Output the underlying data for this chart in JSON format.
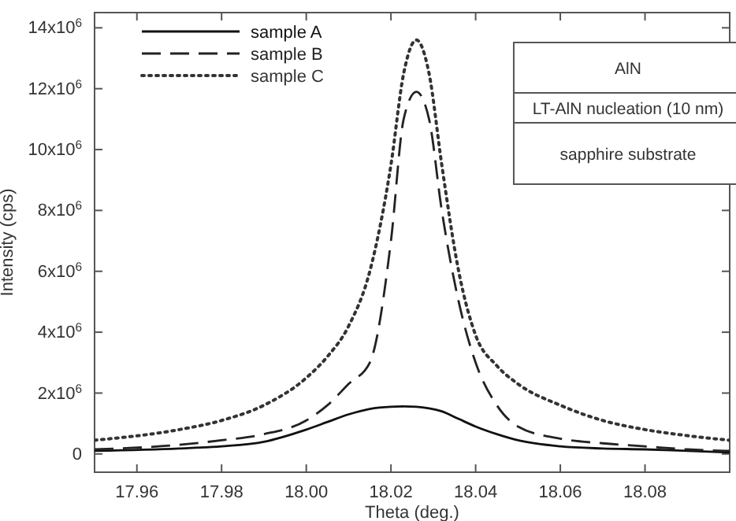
{
  "chart_data": {
    "type": "line",
    "xlabel": "Theta (deg.)",
    "ylabel": "Intensity (cps)",
    "x": [
      17.95,
      17.97,
      17.98,
      17.99,
      18.0,
      18.005,
      18.01,
      18.015,
      18.02,
      18.023,
      18.026,
      18.029,
      18.032,
      18.036,
      18.04,
      18.045,
      18.05,
      18.06,
      18.07,
      18.08,
      18.09,
      18.1
    ],
    "series": [
      {
        "name": "sample A",
        "color": "#111111",
        "line_style": "solid",
        "values": [
          100000,
          180000,
          250000,
          400000,
          800000,
          1050000,
          1300000,
          1480000,
          1550000,
          1560000,
          1550000,
          1500000,
          1400000,
          1150000,
          900000,
          650000,
          450000,
          250000,
          180000,
          150000,
          100000,
          50000
        ]
      },
      {
        "name": "sample B",
        "color": "#222222",
        "line_style": "dashed",
        "values": [
          150000,
          300000,
          450000,
          650000,
          1100000,
          1600000,
          2300000,
          3000000,
          7000000,
          11000000,
          11900000,
          11000000,
          8000000,
          5000000,
          3000000,
          1600000,
          900000,
          500000,
          350000,
          250000,
          150000,
          100000
        ]
      },
      {
        "name": "sample C",
        "color": "#333333",
        "line_style": "dotted",
        "values": [
          450000,
          800000,
          1100000,
          1600000,
          2500000,
          3200000,
          4200000,
          6000000,
          9500000,
          12500000,
          13600000,
          12500000,
          9500000,
          6000000,
          3900000,
          2900000,
          2300000,
          1600000,
          1100000,
          800000,
          600000,
          450000
        ]
      }
    ],
    "xlim": [
      17.95,
      18.1
    ],
    "xticks": [
      17.96,
      17.98,
      {
        "value": 18.0,
        "label": "18.00"
      },
      18.02,
      18.04,
      18.06,
      18.08
    ],
    "ylim": [
      -600000,
      14500000
    ],
    "yticks": [
      {
        "value": 0,
        "label": "0"
      },
      {
        "value": 2000000,
        "label": "2x10$^{6}$"
      },
      {
        "value": 4000000,
        "label": "4x10$^{6}$"
      },
      {
        "value": 6000000,
        "label": "6x10$^{6}$"
      },
      {
        "value": 8000000,
        "label": "8x10$^{6}$"
      },
      {
        "value": 10000000,
        "label": "10x10$^{6}$"
      },
      {
        "value": 12000000,
        "label": "12x10$^{6}$"
      },
      {
        "value": 14000000,
        "label": "14x10$^{6}$"
      }
    ],
    "legend": "top left",
    "grid": false,
    "annotations": [
      "AlN",
      "LT-AlN nucleation (10 nm)",
      "sapphire substrate"
    ]
  }
}
